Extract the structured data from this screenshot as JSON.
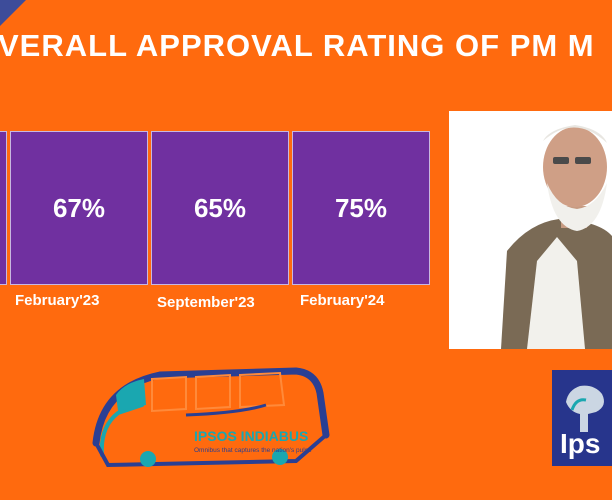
{
  "title": "VERALL APPROVAL RATING OF PM M",
  "cards": [
    {
      "value": "67%",
      "label": "February'23"
    },
    {
      "value": "65%",
      "label": "September'23"
    },
    {
      "value": "75%",
      "label": "February'24"
    }
  ],
  "logo": {
    "name": "IPSOS INDIABUS",
    "tagline": "Omnibus that captures the nation's pulse"
  },
  "brand": "Ips",
  "colors": {
    "background": "#ff6a0e",
    "card": "#7030a0",
    "brand_blue": "#27358c",
    "bus_blue": "#2a3f93",
    "bus_teal": "#1aa7b0"
  }
}
